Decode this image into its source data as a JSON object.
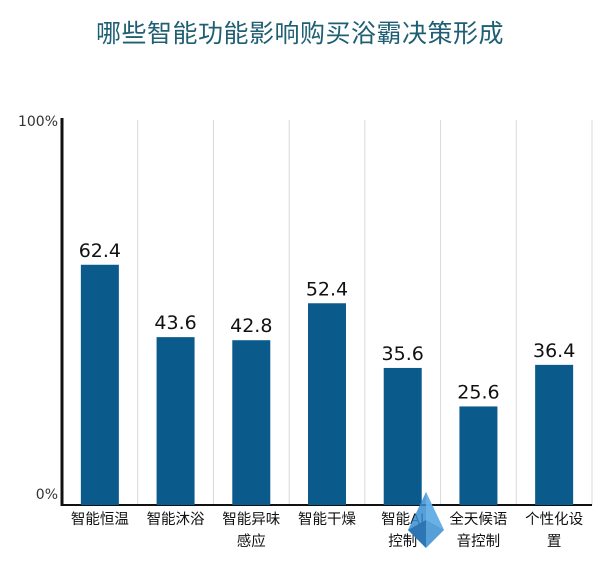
{
  "chart_data": {
    "type": "bar",
    "title": "哪些智能功能影响购买浴霸决策形成",
    "categories": [
      [
        "智能恒温"
      ],
      [
        "智能沐浴"
      ],
      [
        "智能异味",
        "感应"
      ],
      [
        "智能干燥"
      ],
      [
        "智能AI",
        "控制"
      ],
      [
        "全天候语",
        "音控制"
      ],
      [
        "个性化设",
        "置"
      ]
    ],
    "values": [
      62.4,
      43.6,
      42.8,
      52.4,
      35.6,
      25.6,
      36.4
    ],
    "value_labels": [
      "62.4",
      "43.6",
      "42.8",
      "52.4",
      "35.6",
      "25.6",
      "36.4"
    ],
    "y_tick_labels": [
      "0%",
      "100%"
    ],
    "ylim": [
      0,
      100
    ],
    "grid": "vertical",
    "bar_color": "#0a5a8c"
  }
}
